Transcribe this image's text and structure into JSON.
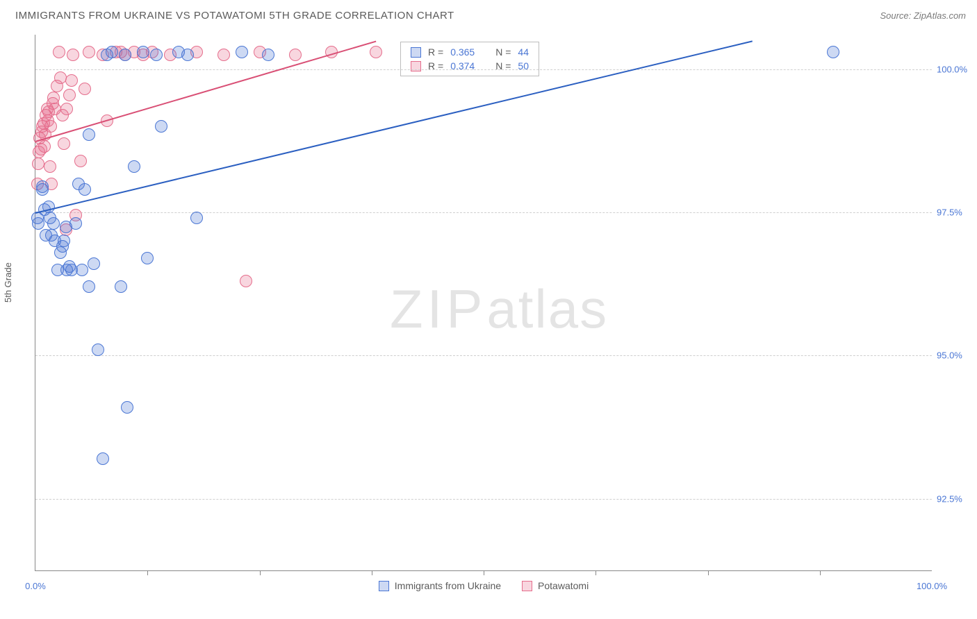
{
  "title": "IMMIGRANTS FROM UKRAINE VS POTAWATOMI 5TH GRADE CORRELATION CHART",
  "source_label": "Source: ZipAtlas.com",
  "ylabel": "5th Grade",
  "watermark": {
    "zip": "ZIP",
    "atlas": "atlas"
  },
  "plot": {
    "xlim": [
      0,
      100
    ],
    "ylim": [
      91.25,
      100.6
    ],
    "y_ticks": [
      92.5,
      95.0,
      97.5,
      100.0
    ],
    "y_tick_labels": [
      "92.5%",
      "95.0%",
      "97.5%",
      "100.0%"
    ],
    "x_major": [
      0,
      100
    ],
    "x_major_labels": [
      "0.0%",
      "100.0%"
    ],
    "x_minor": [
      12.5,
      25,
      37.5,
      50,
      62.5,
      75,
      87.5
    ],
    "grid_color": "#d0d0d0",
    "axis_color": "#888888",
    "background": "#ffffff"
  },
  "series": {
    "ukraine": {
      "label": "Immigrants from Ukraine",
      "fill": "rgba(74,118,212,0.28)",
      "stroke": "#4a76d4",
      "marker_radius": 9,
      "R": "0.365",
      "N": "44",
      "trend": {
        "x1": 0,
        "y1": 97.5,
        "x2": 80,
        "y2": 100.5,
        "color": "#2b5fc1",
        "width": 2
      },
      "points": [
        [
          0.2,
          97.4
        ],
        [
          0.3,
          97.3
        ],
        [
          0.8,
          97.9
        ],
        [
          0.8,
          97.95
        ],
        [
          1.0,
          97.55
        ],
        [
          1.2,
          97.1
        ],
        [
          1.5,
          97.6
        ],
        [
          1.6,
          97.4
        ],
        [
          1.8,
          97.1
        ],
        [
          2.0,
          97.3
        ],
        [
          2.2,
          97.0
        ],
        [
          2.5,
          96.5
        ],
        [
          2.8,
          96.8
        ],
        [
          3.0,
          96.9
        ],
        [
          3.2,
          97.0
        ],
        [
          3.4,
          97.25
        ],
        [
          3.5,
          96.5
        ],
        [
          3.8,
          96.55
        ],
        [
          4.0,
          96.5
        ],
        [
          4.5,
          97.3
        ],
        [
          4.8,
          98.0
        ],
        [
          5.2,
          96.5
        ],
        [
          5.5,
          97.9
        ],
        [
          6.0,
          98.85
        ],
        [
          6.0,
          96.2
        ],
        [
          6.5,
          96.6
        ],
        [
          7.0,
          95.1
        ],
        [
          7.5,
          93.2
        ],
        [
          8.0,
          100.25
        ],
        [
          8.5,
          100.3
        ],
        [
          9.5,
          96.2
        ],
        [
          10.0,
          100.25
        ],
        [
          10.2,
          94.1
        ],
        [
          11.0,
          98.3
        ],
        [
          12.0,
          100.3
        ],
        [
          12.5,
          96.7
        ],
        [
          13.5,
          100.25
        ],
        [
          14.0,
          99.0
        ],
        [
          16.0,
          100.3
        ],
        [
          17.0,
          100.25
        ],
        [
          18.0,
          97.4
        ],
        [
          23.0,
          100.3
        ],
        [
          26.0,
          100.25
        ],
        [
          89.0,
          100.3
        ]
      ]
    },
    "potawatomi": {
      "label": "Potawatomi",
      "fill": "rgba(229,109,140,0.28)",
      "stroke": "#e56d8c",
      "marker_radius": 9,
      "R": "0.374",
      "N": "50",
      "trend": {
        "x1": 0,
        "y1": 98.75,
        "x2": 38,
        "y2": 100.5,
        "color": "#d94f75",
        "width": 2
      },
      "points": [
        [
          0.2,
          98.0
        ],
        [
          0.3,
          98.35
        ],
        [
          0.4,
          98.55
        ],
        [
          0.5,
          98.8
        ],
        [
          0.6,
          98.6
        ],
        [
          0.7,
          98.9
        ],
        [
          0.8,
          99.0
        ],
        [
          0.9,
          99.05
        ],
        [
          1.0,
          98.65
        ],
        [
          1.1,
          98.85
        ],
        [
          1.2,
          99.2
        ],
        [
          1.3,
          99.3
        ],
        [
          1.4,
          99.1
        ],
        [
          1.5,
          99.25
        ],
        [
          1.6,
          98.3
        ],
        [
          1.7,
          99.0
        ],
        [
          1.8,
          98.0
        ],
        [
          1.9,
          99.4
        ],
        [
          2.0,
          99.5
        ],
        [
          2.2,
          99.3
        ],
        [
          2.4,
          99.7
        ],
        [
          2.6,
          100.3
        ],
        [
          2.8,
          99.85
        ],
        [
          3.0,
          99.2
        ],
        [
          3.2,
          98.7
        ],
        [
          3.4,
          97.2
        ],
        [
          3.5,
          99.3
        ],
        [
          3.8,
          99.55
        ],
        [
          4.0,
          99.8
        ],
        [
          4.2,
          100.25
        ],
        [
          4.5,
          97.45
        ],
        [
          5.0,
          98.4
        ],
        [
          5.5,
          99.65
        ],
        [
          6.0,
          100.3
        ],
        [
          7.5,
          100.25
        ],
        [
          8.0,
          99.1
        ],
        [
          9.0,
          100.3
        ],
        [
          9.5,
          100.3
        ],
        [
          10.0,
          100.25
        ],
        [
          11.0,
          100.3
        ],
        [
          12.0,
          100.25
        ],
        [
          13.0,
          100.3
        ],
        [
          15.0,
          100.25
        ],
        [
          18.0,
          100.3
        ],
        [
          21.0,
          100.25
        ],
        [
          23.5,
          96.3
        ],
        [
          25.0,
          100.3
        ],
        [
          29.0,
          100.25
        ],
        [
          33.0,
          100.3
        ],
        [
          38.0,
          100.3
        ]
      ]
    }
  },
  "legend_top": {
    "r_label": "R =",
    "n_label": "N ="
  },
  "colors": {
    "title": "#5a5a5a",
    "value": "#4a76d4"
  }
}
